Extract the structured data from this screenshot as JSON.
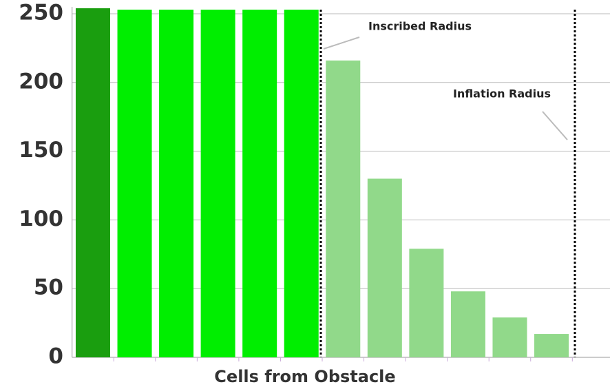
{
  "chart_data": {
    "type": "bar",
    "xlabel": "Cells from Obstacle",
    "categories": [
      null,
      null,
      null,
      null,
      null,
      null,
      null,
      null,
      null,
      null,
      null,
      null
    ],
    "values": [
      254,
      253,
      253,
      253,
      253,
      253,
      216,
      130,
      79,
      48,
      29,
      17
    ],
    "colors": [
      "#1a9e0f",
      "#00ee00",
      "#00ee00",
      "#00ee00",
      "#00ee00",
      "#00ee00",
      "#91d98a",
      "#91d98a",
      "#91d98a",
      "#91d98a",
      "#91d98a",
      "#91d98a"
    ],
    "ylim": [
      0,
      250
    ],
    "yticks": [
      0,
      50,
      100,
      150,
      200,
      250
    ],
    "grid": true,
    "annotations": [
      "Inscribed Radius",
      "Inflation Radius"
    ]
  }
}
